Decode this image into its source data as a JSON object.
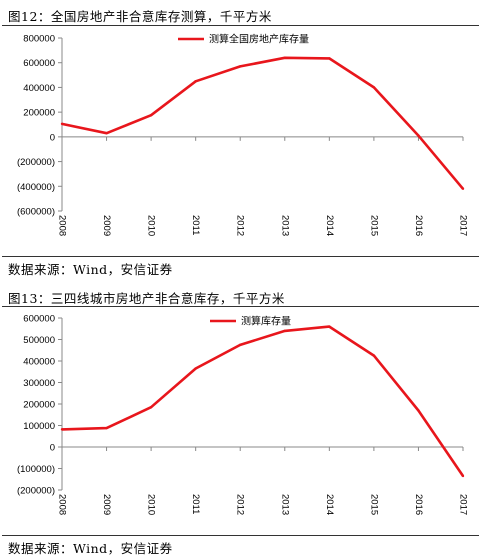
{
  "figures": [
    {
      "title": "图12：全国房地产非合意库存测算，千平方米",
      "source": "数据来源：Wind，安信证券"
    },
    {
      "title": "图13：三四线城市房地产非合意库存，千平方米",
      "source": "数据来源：Wind，安信证券"
    }
  ],
  "colors": {
    "series": "#e8161c",
    "axis": "#888888",
    "rule": "#333333"
  },
  "chart_data": [
    {
      "type": "line",
      "title": "",
      "xlabel": "",
      "ylabel": "",
      "x": [
        "2008",
        "2009",
        "2010",
        "2011",
        "2012",
        "2013",
        "2014",
        "2015",
        "2016",
        "2017"
      ],
      "series": [
        {
          "name": "测算全国房地产库存量",
          "values": [
            105000,
            30000,
            175000,
            450000,
            570000,
            640000,
            635000,
            400000,
            10000,
            -420000
          ]
        }
      ],
      "ylim": [
        -600000,
        800000
      ],
      "yticks": [
        {
          "value": 800000,
          "label": "800000"
        },
        {
          "value": 600000,
          "label": "600000"
        },
        {
          "value": 400000,
          "label": "400000"
        },
        {
          "value": 200000,
          "label": "200000"
        },
        {
          "value": 0,
          "label": "0"
        },
        {
          "value": -200000,
          "label": "(200000)"
        },
        {
          "value": -400000,
          "label": "(400000)"
        },
        {
          "value": -600000,
          "label": "(600000)"
        }
      ],
      "legend_position": "top-center",
      "grid": false
    },
    {
      "type": "line",
      "title": "",
      "xlabel": "",
      "ylabel": "",
      "x": [
        "2008",
        "2009",
        "2010",
        "2011",
        "2012",
        "2013",
        "2014",
        "2015",
        "2016",
        "2017"
      ],
      "series": [
        {
          "name": "测算库存量",
          "values": [
            82000,
            88000,
            185000,
            365000,
            475000,
            540000,
            560000,
            425000,
            170000,
            -135000
          ]
        }
      ],
      "ylim": [
        -200000,
        600000
      ],
      "yticks": [
        {
          "value": 600000,
          "label": "600000"
        },
        {
          "value": 500000,
          "label": "500000"
        },
        {
          "value": 400000,
          "label": "400000"
        },
        {
          "value": 300000,
          "label": "300000"
        },
        {
          "value": 200000,
          "label": "200000"
        },
        {
          "value": 100000,
          "label": "100000"
        },
        {
          "value": 0,
          "label": "0"
        },
        {
          "value": -100000,
          "label": "(100000)"
        },
        {
          "value": -200000,
          "label": "(200000)"
        }
      ],
      "legend_position": "top-center",
      "grid": false
    }
  ]
}
